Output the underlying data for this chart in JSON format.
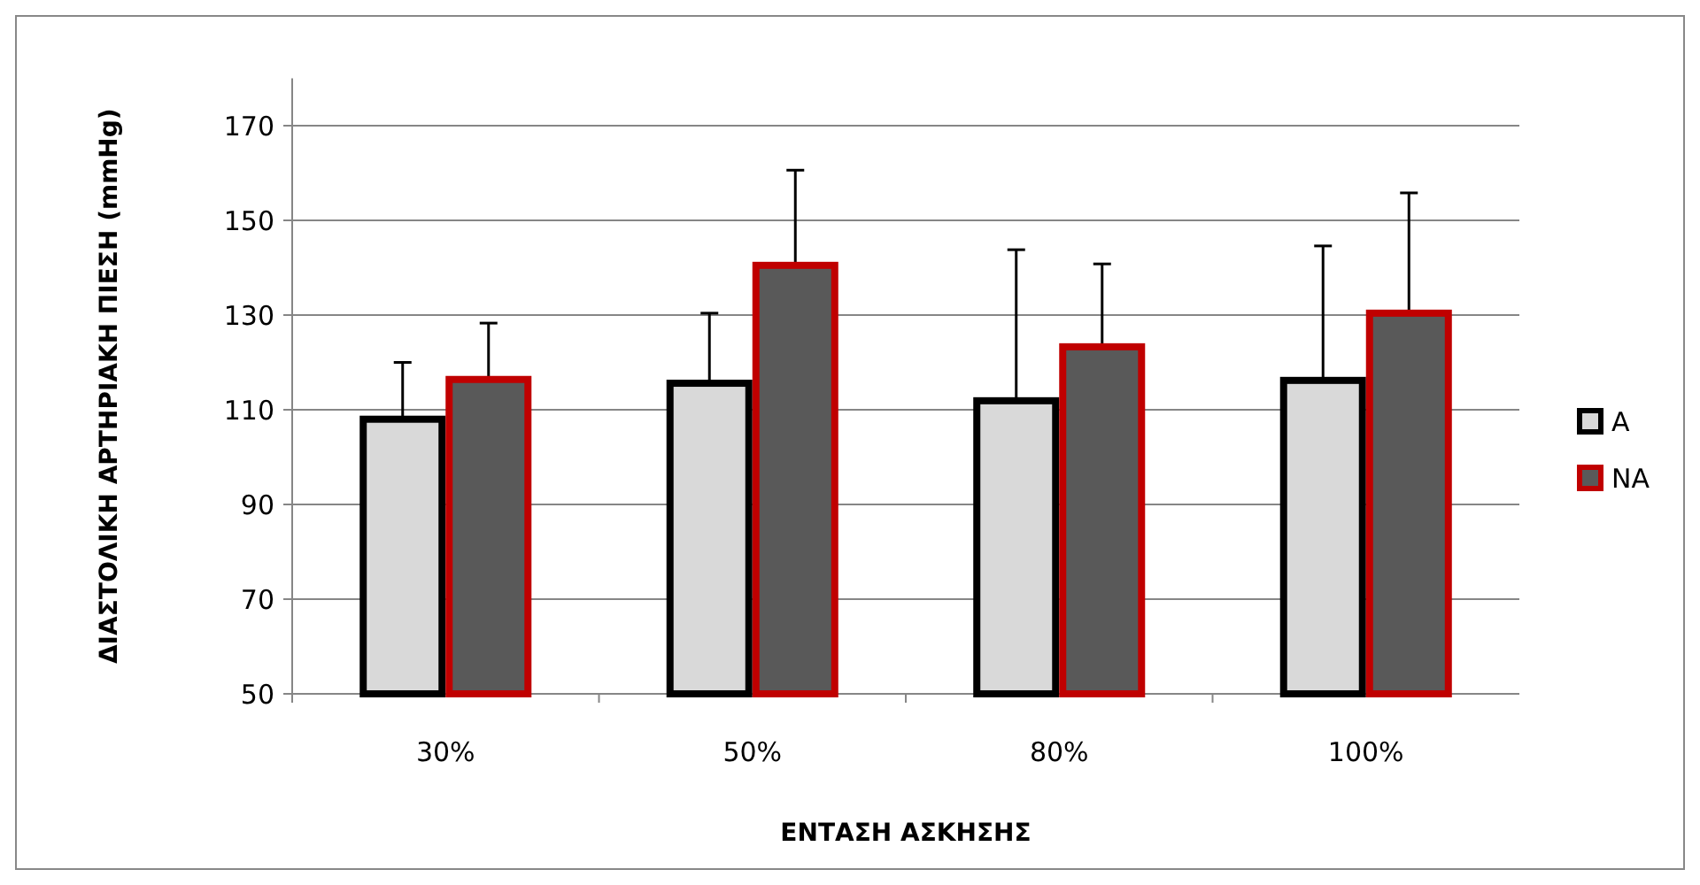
{
  "chart_data": {
    "type": "bar",
    "xlabel": "ΕΝΤΑΣΗ ΑΣΚΗΣΗΣ",
    "ylabel": "ΔΙΑΣΤΟΛΙΚΗ ΑΡΤΗΡΙΑΚΗ ΠΙΕΣΗ (mmHg)",
    "categories": [
      "30%",
      "50%",
      "80%",
      "100%"
    ],
    "series": [
      {
        "name": "A",
        "color": "#d9d9d9",
        "values": [
          108,
          115.6,
          111.9,
          116.2
        ],
        "errors": [
          [
            108,
            120
          ],
          [
            115.6,
            130.4
          ],
          [
            111.9,
            143.8
          ],
          [
            116.2,
            144.6
          ]
        ]
      },
      {
        "name": "NA",
        "color": "#595959",
        "values": [
          116.4,
          140.5,
          123.3,
          130.4
        ],
        "errors": [
          [
            116.4,
            128.3
          ],
          [
            140.5,
            160.6
          ],
          [
            123.3,
            140.8
          ],
          [
            130.4,
            155.8
          ]
        ]
      }
    ],
    "ylim": [
      50,
      180
    ],
    "yticks": [
      50,
      70,
      90,
      110,
      130,
      150,
      170
    ],
    "grid": "y",
    "legend": "right"
  }
}
